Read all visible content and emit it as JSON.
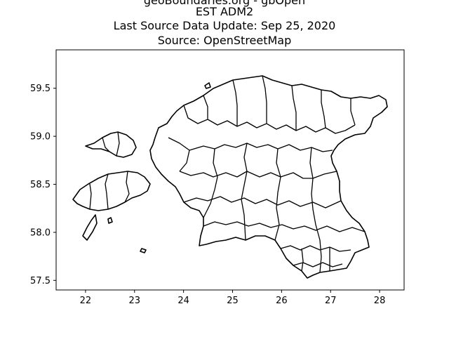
{
  "title_lines": [
    "geoBoundaries.org - gbOpen",
    "EST ADM2",
    "Last Source Data Update: Sep 25, 2020",
    "Source: OpenStreetMap"
  ],
  "chart_data": {
    "type": "map",
    "description_of_content": "Administrative level 2 boundaries of Estonia drawn as black outlines",
    "xlim": [
      21.4,
      28.5
    ],
    "ylim": [
      57.4,
      59.9
    ],
    "x_ticks": [
      22,
      23,
      24,
      25,
      26,
      27,
      28
    ],
    "y_ticks": [
      57.5,
      58.0,
      58.5,
      59.0,
      59.5
    ],
    "x_tick_labels": [
      "22",
      "23",
      "24",
      "25",
      "26",
      "27",
      "28"
    ],
    "y_tick_labels": [
      "57.5",
      "58.0",
      "58.5",
      "59.0",
      "59.5"
    ],
    "outline_color": "#000000",
    "background_color": "#ffffff",
    "grid": false
  }
}
